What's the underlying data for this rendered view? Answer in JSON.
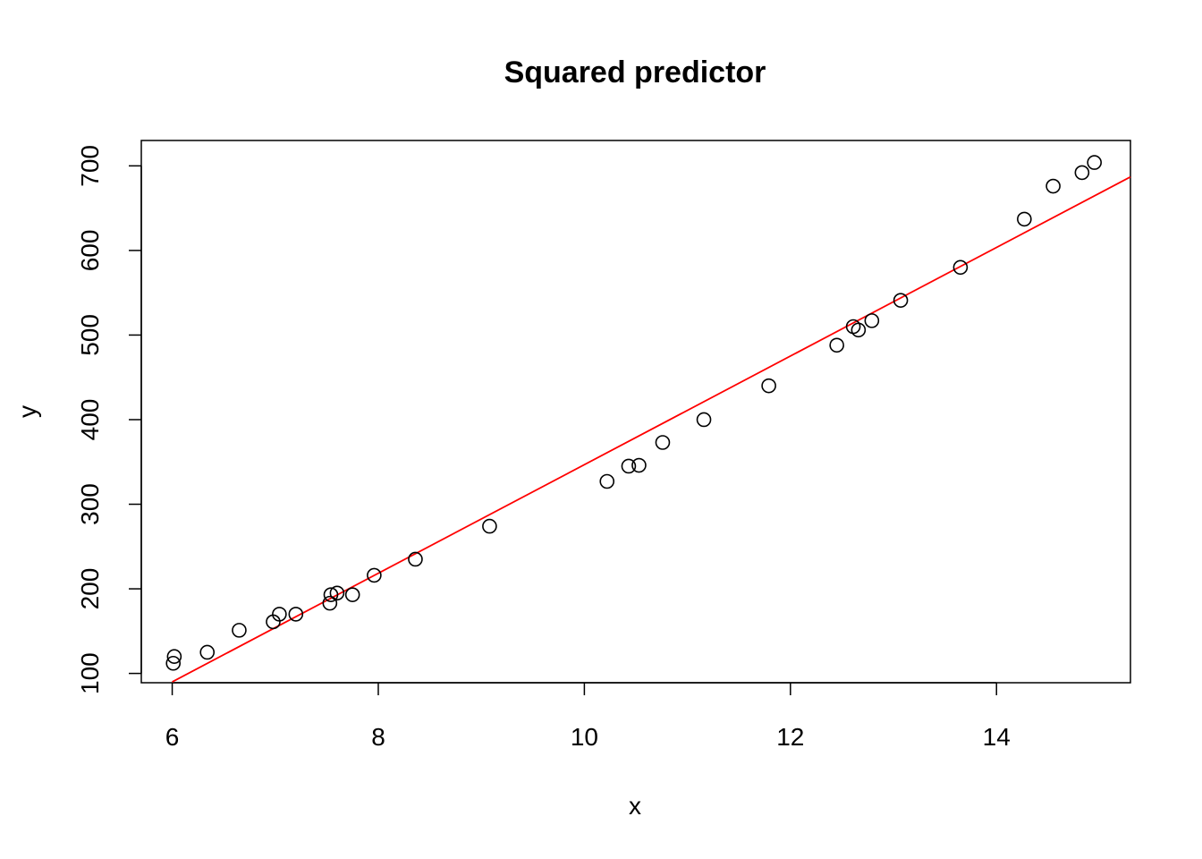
{
  "chart_data": {
    "type": "scatter",
    "title": "Squared predictor",
    "xlabel": "x",
    "ylabel": "y",
    "xlim": [
      5.7,
      15.3
    ],
    "ylim": [
      89,
      730
    ],
    "x_ticks": [
      6,
      8,
      10,
      12,
      14
    ],
    "y_ticks": [
      100,
      200,
      300,
      400,
      500,
      600,
      700
    ],
    "grid": false,
    "legend": "none",
    "point_color": "#000000",
    "fit_line_color": "#ff0000",
    "points": [
      {
        "x": 6.01,
        "y": 112
      },
      {
        "x": 6.02,
        "y": 120
      },
      {
        "x": 6.34,
        "y": 125
      },
      {
        "x": 6.65,
        "y": 151
      },
      {
        "x": 6.98,
        "y": 161
      },
      {
        "x": 7.04,
        "y": 170
      },
      {
        "x": 7.2,
        "y": 170
      },
      {
        "x": 7.53,
        "y": 183
      },
      {
        "x": 7.54,
        "y": 193
      },
      {
        "x": 7.6,
        "y": 195
      },
      {
        "x": 7.75,
        "y": 193
      },
      {
        "x": 7.96,
        "y": 216
      },
      {
        "x": 8.36,
        "y": 235
      },
      {
        "x": 9.08,
        "y": 274
      },
      {
        "x": 10.22,
        "y": 327
      },
      {
        "x": 10.43,
        "y": 345
      },
      {
        "x": 10.53,
        "y": 346
      },
      {
        "x": 10.76,
        "y": 373
      },
      {
        "x": 11.16,
        "y": 400
      },
      {
        "x": 11.79,
        "y": 440
      },
      {
        "x": 12.45,
        "y": 488
      },
      {
        "x": 12.61,
        "y": 510
      },
      {
        "x": 12.66,
        "y": 506
      },
      {
        "x": 12.79,
        "y": 517
      },
      {
        "x": 13.07,
        "y": 541
      },
      {
        "x": 13.65,
        "y": 580
      },
      {
        "x": 14.27,
        "y": 637
      },
      {
        "x": 14.55,
        "y": 676
      },
      {
        "x": 14.83,
        "y": 692
      },
      {
        "x": 14.95,
        "y": 704
      }
    ],
    "fit_line": {
      "x1": 6.0,
      "y1": 90,
      "x2": 15.3,
      "y2": 687
    }
  }
}
